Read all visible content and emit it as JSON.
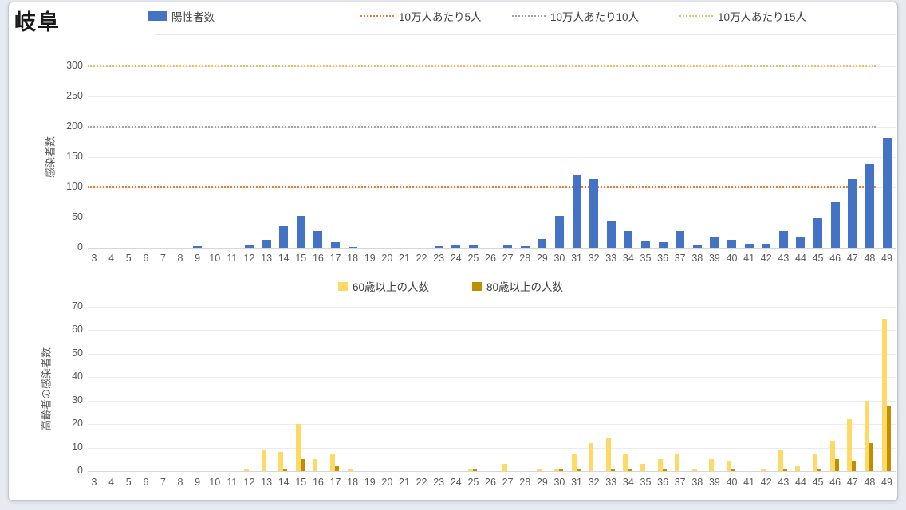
{
  "page": {
    "title": "岐阜"
  },
  "chart_data": [
    {
      "type": "bar",
      "title": "岐阜",
      "categories": [
        3,
        4,
        5,
        6,
        7,
        8,
        9,
        10,
        11,
        12,
        13,
        14,
        15,
        16,
        17,
        18,
        19,
        20,
        21,
        22,
        23,
        24,
        25,
        26,
        27,
        28,
        29,
        30,
        31,
        32,
        33,
        34,
        35,
        36,
        37,
        38,
        39,
        40,
        41,
        42,
        43,
        44,
        45,
        46,
        47,
        48,
        49
      ],
      "series": [
        {
          "name": "陽性者数",
          "color": "#4472C4",
          "values": [
            0,
            0,
            0,
            0,
            0,
            0,
            3,
            0,
            0,
            4,
            13,
            36,
            53,
            27,
            9,
            1,
            0,
            0,
            0,
            0,
            2,
            4,
            4,
            0,
            5,
            2,
            14,
            52,
            120,
            113,
            45,
            28,
            12,
            9,
            28,
            5,
            19,
            13,
            6,
            7,
            28,
            17,
            49,
            75,
            113,
            138,
            182
          ]
        }
      ],
      "reference_lines": [
        {
          "label": "10万人あたり5人",
          "y": 100,
          "color": "#ED7D31"
        },
        {
          "label": "10万人あたり10人",
          "y": 200,
          "color": "#A6A6A6"
        },
        {
          "label": "10万人あたり15人",
          "y": 300,
          "color": "#E8C06A"
        }
      ],
      "xlabel": "",
      "ylabel": "感染者数",
      "ylim": [
        0,
        300
      ],
      "yticks": [
        0,
        50,
        100,
        150,
        200,
        250,
        300
      ],
      "grid": true,
      "legend_position": "top"
    },
    {
      "type": "bar",
      "title": "",
      "categories": [
        3,
        4,
        5,
        6,
        7,
        8,
        9,
        10,
        11,
        12,
        13,
        14,
        15,
        16,
        17,
        18,
        19,
        20,
        21,
        22,
        23,
        24,
        25,
        26,
        27,
        28,
        29,
        30,
        31,
        32,
        33,
        34,
        35,
        36,
        37,
        38,
        39,
        40,
        41,
        42,
        43,
        44,
        45,
        46,
        47,
        48,
        49
      ],
      "series": [
        {
          "name": "60歳以上の人数",
          "color": "#FFD966",
          "values": [
            0,
            0,
            0,
            0,
            0,
            0,
            0,
            0,
            0,
            1,
            9,
            8,
            20,
            5,
            7,
            1,
            0,
            0,
            0,
            0,
            0,
            0,
            1,
            0,
            3,
            0,
            1,
            1,
            7,
            12,
            14,
            7,
            3,
            5,
            7,
            1,
            5,
            4,
            0,
            1,
            9,
            2,
            7,
            13,
            22,
            30,
            65
          ]
        },
        {
          "name": "80歳以上の人数",
          "color": "#BF8F00",
          "values": [
            0,
            0,
            0,
            0,
            0,
            0,
            0,
            0,
            0,
            0,
            0,
            1,
            5,
            0,
            2,
            0,
            0,
            0,
            0,
            0,
            0,
            0,
            1,
            0,
            0,
            0,
            0,
            1,
            1,
            0,
            1,
            1,
            0,
            1,
            0,
            0,
            0,
            1,
            0,
            0,
            1,
            0,
            1,
            5,
            4,
            12,
            28
          ]
        }
      ],
      "xlabel": "",
      "ylabel": "高齢者の感染者数",
      "ylim": [
        0,
        70
      ],
      "yticks": [
        0,
        10,
        20,
        30,
        40,
        50,
        60,
        70
      ],
      "grid": true,
      "legend_position": "top"
    }
  ],
  "colors": {
    "bar_blue": "#4472C4",
    "bar_yellow": "#FFD966",
    "bar_gold": "#BF8F00",
    "ref_orange": "#ED7D31",
    "ref_gray": "#A6A6A6",
    "ref_lightgold": "#E8C06A"
  }
}
